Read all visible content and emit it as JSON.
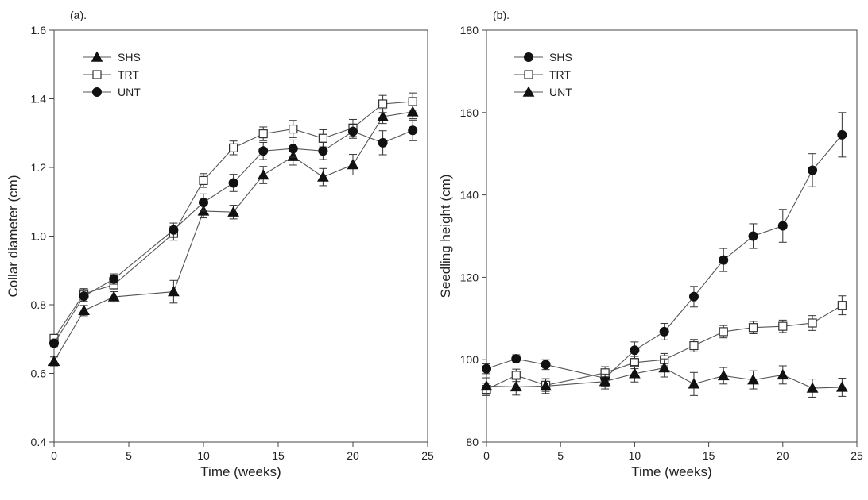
{
  "chart_data": [
    {
      "type": "line",
      "panel_label": "(a).",
      "xlabel": "Time (weeks)",
      "ylabel": "Collar diameter (cm)",
      "xlim": [
        0,
        25
      ],
      "ylim": [
        0.4,
        1.6
      ],
      "xticks": [
        0,
        5,
        10,
        15,
        20,
        25
      ],
      "xtick_labels": [
        "0",
        "5",
        "10",
        "15",
        "20",
        "25"
      ],
      "yticks": [
        0.4,
        0.6,
        0.8,
        1.0,
        1.2,
        1.4,
        1.6
      ],
      "ytick_labels": [
        "0.4",
        "0.6",
        "0.8",
        "1.0",
        "1.2",
        "1.4",
        "1.6"
      ],
      "grid": false,
      "legend_position": "top-left",
      "x": [
        0,
        2,
        4,
        8,
        10,
        12,
        14,
        16,
        18,
        20,
        22,
        24
      ],
      "series": [
        {
          "name": "SHS",
          "marker": "triangle-filled",
          "values": [
            0.635,
            0.783,
            0.823,
            0.838,
            1.073,
            1.07,
            1.178,
            1.232,
            1.172,
            1.208,
            1.348,
            1.362
          ],
          "errors": [
            0.013,
            0.015,
            0.015,
            0.033,
            0.02,
            0.02,
            0.025,
            0.025,
            0.025,
            0.03,
            0.02,
            0.02
          ]
        },
        {
          "name": "TRT",
          "marker": "square-open",
          "values": [
            0.702,
            0.832,
            0.858,
            1.008,
            1.162,
            1.257,
            1.298,
            1.312,
            1.285,
            1.315,
            1.385,
            1.392
          ],
          "errors": [
            0.01,
            0.015,
            0.015,
            0.02,
            0.02,
            0.02,
            0.02,
            0.025,
            0.025,
            0.025,
            0.025,
            0.025
          ]
        },
        {
          "name": "UNT",
          "marker": "circle-filled",
          "values": [
            0.688,
            0.825,
            0.875,
            1.018,
            1.098,
            1.155,
            1.248,
            1.255,
            1.248,
            1.305,
            1.272,
            1.308
          ],
          "errors": [
            0.01,
            0.015,
            0.015,
            0.02,
            0.025,
            0.025,
            0.025,
            0.025,
            0.025,
            0.02,
            0.035,
            0.03
          ]
        }
      ]
    },
    {
      "type": "line",
      "panel_label": "(b).",
      "xlabel": "Time (weeks)",
      "ylabel": "Seedling height (cm)",
      "xlim": [
        0,
        25
      ],
      "ylim": [
        80,
        180
      ],
      "xticks": [
        0,
        5,
        10,
        15,
        20,
        25
      ],
      "xtick_labels": [
        "0",
        "5",
        "10",
        "15",
        "20",
        "25"
      ],
      "yticks": [
        80,
        100,
        120,
        140,
        160,
        180
      ],
      "ytick_labels": [
        "80",
        "100",
        "120",
        "140",
        "160",
        "180"
      ],
      "grid": false,
      "legend_position": "top-left",
      "x": [
        0,
        2,
        4,
        8,
        10,
        12,
        14,
        16,
        18,
        20,
        22,
        24
      ],
      "series": [
        {
          "name": "SHS",
          "marker": "circle-filled",
          "values": [
            97.8,
            100.2,
            98.8,
            95.5,
            102.3,
            106.8,
            115.3,
            124.2,
            130.0,
            132.5,
            146.0,
            154.6
          ],
          "errors": [
            1.2,
            1.0,
            1.2,
            2.0,
            2.0,
            2.0,
            2.5,
            2.8,
            3.0,
            4.0,
            4.0,
            5.4
          ]
        },
        {
          "name": "TRT",
          "marker": "square-open",
          "values": [
            92.8,
            96.2,
            93.8,
            96.8,
            99.3,
            100.0,
            103.4,
            106.8,
            107.8,
            108.1,
            108.9,
            113.2
          ],
          "errors": [
            1.5,
            1.5,
            1.5,
            1.5,
            1.5,
            1.5,
            1.5,
            1.5,
            1.5,
            1.5,
            1.8,
            2.3
          ]
        },
        {
          "name": "UNT",
          "marker": "triangle-filled",
          "values": [
            93.6,
            93.4,
            93.6,
            94.7,
            96.6,
            98.0,
            94.1,
            96.1,
            95.1,
            96.3,
            93.1,
            93.3
          ],
          "errors": [
            2.0,
            2.0,
            1.8,
            1.8,
            2.0,
            2.2,
            2.8,
            2.0,
            2.2,
            2.2,
            2.2,
            2.2
          ]
        }
      ]
    }
  ]
}
